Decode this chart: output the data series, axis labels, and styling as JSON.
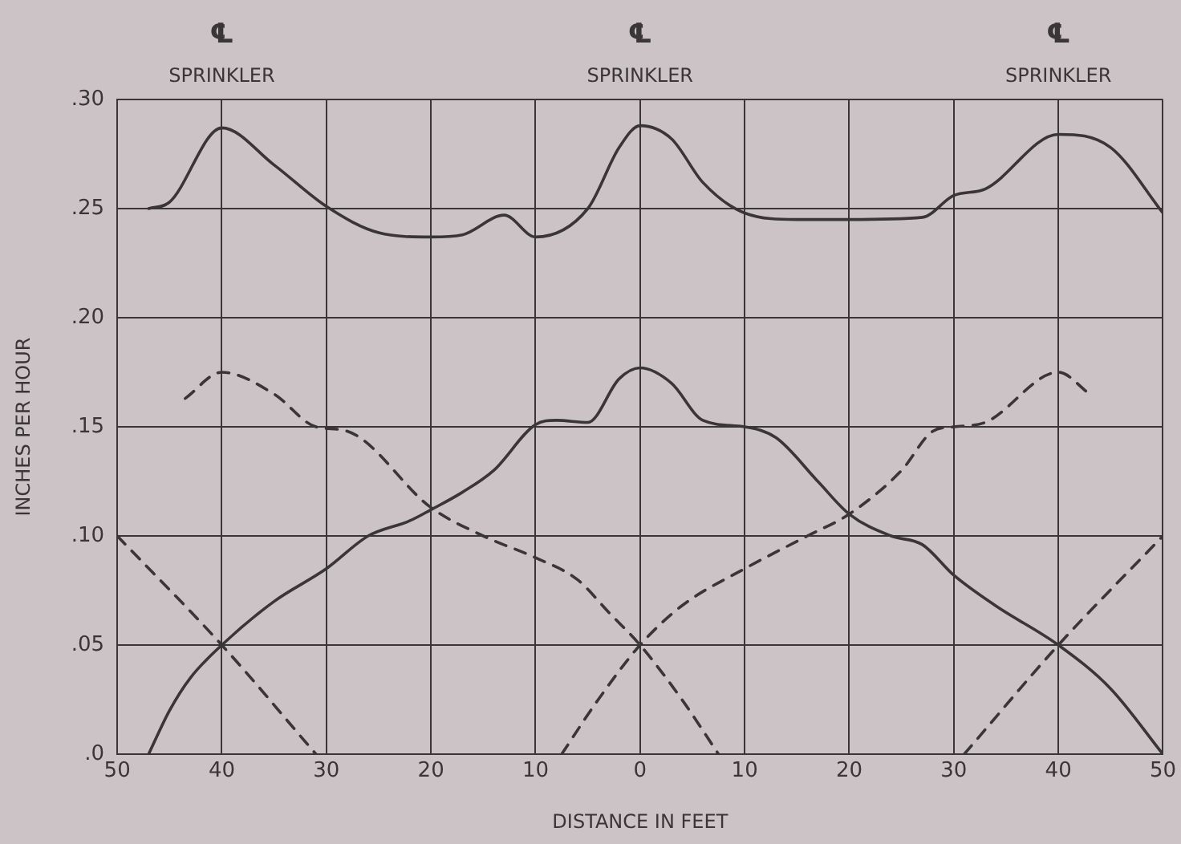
{
  "chart_data": {
    "type": "line",
    "xlabel": "DISTANCE IN FEET",
    "ylabel": "INCHES PER HOUR",
    "xlim": [
      -50,
      50
    ],
    "xticks": [
      {
        "value": -50,
        "label": "50"
      },
      {
        "value": -40,
        "label": "40"
      },
      {
        "value": -30,
        "label": "30"
      },
      {
        "value": -20,
        "label": "20"
      },
      {
        "value": -10,
        "label": "10"
      },
      0,
      10,
      20,
      30,
      40,
      50
    ],
    "ylim": [
      0,
      0.3
    ],
    "yticks": [
      {
        "value": 0,
        "label": ".0"
      },
      {
        "value": 0.05,
        "label": ".05"
      },
      {
        "value": 0.1,
        "label": ".10"
      },
      {
        "value": 0.15,
        "label": ".15"
      },
      {
        "value": 0.2,
        "label": ".20"
      },
      {
        "value": 0.25,
        "label": ".25"
      },
      {
        "value": 0.3,
        "label": ".30"
      }
    ],
    "grid": true,
    "legend": false,
    "marker": "none",
    "series": [
      {
        "color": "#3a3536",
        "line_style": "solid",
        "x": [
          -47,
          -45,
          -40,
          -35,
          -30,
          -25,
          -20,
          -17,
          -13,
          -10,
          -5,
          -2,
          0,
          3,
          6,
          10,
          15,
          20,
          27,
          30,
          33,
          40,
          45,
          50
        ],
        "values": [
          0.25,
          0.253,
          0.287,
          0.27,
          0.251,
          0.239,
          0.237,
          0.238,
          0.247,
          0.237,
          0.25,
          0.278,
          0.288,
          0.282,
          0.262,
          0.248,
          0.245,
          0.245,
          0.246,
          0.256,
          0.259,
          0.284,
          0.278,
          0.248
        ]
      },
      {
        "color": "#3a3536",
        "line_style": "solid",
        "x": [
          -47,
          -45,
          -43,
          -40,
          -35,
          -30,
          -26,
          -22,
          -20,
          -17,
          -14,
          -10,
          -8,
          -5,
          -2,
          0,
          3,
          6,
          10,
          13,
          17,
          20,
          24,
          27,
          30,
          34,
          40,
          45,
          50
        ],
        "values": [
          0,
          0.02,
          0.035,
          0.05,
          0.07,
          0.085,
          0.1,
          0.107,
          0.112,
          0.12,
          0.13,
          0.151,
          0.153,
          0.152,
          0.172,
          0.177,
          0.17,
          0.153,
          0.15,
          0.145,
          0.125,
          0.11,
          0.1,
          0.096,
          0.082,
          0.068,
          0.05,
          0.03,
          0
        ]
      },
      {
        "color": "#3a3536",
        "line_style": "dashed",
        "x": [
          -50,
          -40,
          -31
        ],
        "values": [
          0.1,
          0.05,
          0
        ]
      },
      {
        "color": "#3a3536",
        "line_style": "dashed",
        "x": [
          -43.5,
          -40,
          -35,
          -31,
          -28,
          -20,
          -15,
          -10,
          -6,
          -3,
          0,
          4,
          7.5
        ],
        "values": [
          0.163,
          0.175,
          0.165,
          0.15,
          0.148,
          0.113,
          0.1,
          0.09,
          0.08,
          0.065,
          0.05,
          0.025,
          0
        ]
      },
      {
        "color": "#3a3536",
        "line_style": "dashed",
        "x": [
          -7.5,
          -4,
          0,
          4,
          10,
          16,
          20,
          25,
          28,
          30,
          33,
          40,
          43
        ],
        "values": [
          0,
          0.025,
          0.05,
          0.068,
          0.085,
          0.1,
          0.11,
          0.13,
          0.148,
          0.15,
          0.152,
          0.175,
          0.165
        ]
      },
      {
        "color": "#3a3536",
        "line_style": "dashed",
        "x": [
          31,
          40,
          50
        ],
        "values": [
          0,
          0.05,
          0.1
        ]
      }
    ],
    "annotations": [
      "℄\nSPRINKLER",
      "℄\nSPRINKLER",
      "℄\nSPRINKLER"
    ]
  }
}
